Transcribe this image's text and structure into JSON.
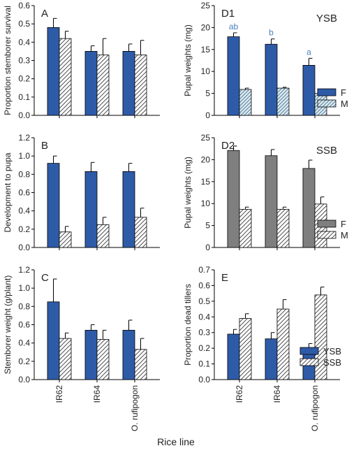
{
  "figure": {
    "xlabel": "Rice line"
  },
  "colors": {
    "blue": "#2e5ba8",
    "gray": "#7f7f7f",
    "hatch_bg": "#dde8ef",
    "sig_label": "#4a7fc1"
  },
  "legends": [
    {
      "panel": "D1",
      "items": [
        {
          "label": "F",
          "style": "blue"
        },
        {
          "label": "M",
          "style": "hatch-blue"
        }
      ]
    },
    {
      "panel": "D2",
      "items": [
        {
          "label": "F",
          "style": "gray"
        },
        {
          "label": "M",
          "style": "hatch-white"
        }
      ]
    },
    {
      "panel": "E",
      "items": [
        {
          "label": "YSB",
          "style": "blue"
        },
        {
          "label": "SSB",
          "style": "hatch-white"
        }
      ]
    }
  ],
  "chart_data": [
    {
      "id": "A",
      "type": "bar",
      "panel_label": "A",
      "subtitle": "",
      "ylabel": "Proportion stemborer survival",
      "ylim": [
        0,
        0.6
      ],
      "yticks": [
        0.0,
        0.1,
        0.2,
        0.3,
        0.4,
        0.5,
        0.6
      ],
      "ytick_decimals": 1,
      "categories": [
        "IR62",
        "IR64",
        "O. rufipogon"
      ],
      "series": [
        {
          "values": [
            0.48,
            0.35,
            0.35
          ],
          "errors": [
            0.05,
            0.03,
            0.04
          ],
          "style": "blue"
        },
        {
          "values": [
            0.42,
            0.33,
            0.33
          ],
          "errors": [
            0.04,
            0.09,
            0.08
          ],
          "style": "hatch-white"
        }
      ]
    },
    {
      "id": "D1",
      "type": "bar",
      "panel_label": "D1",
      "subtitle": "YSB",
      "ylabel": "Pupal weights (mg)",
      "ylim": [
        0,
        25
      ],
      "yticks": [
        0,
        5,
        10,
        15,
        20,
        25
      ],
      "ytick_decimals": 0,
      "categories": [
        "IR62",
        "IR64",
        "O. rufipogon"
      ],
      "series": [
        {
          "values": [
            17.9,
            16.2,
            11.4
          ],
          "errors": [
            0.9,
            1.2,
            1.6
          ],
          "style": "blue",
          "sig_labels": [
            "ab",
            "b",
            "a"
          ]
        },
        {
          "values": [
            5.9,
            6.2,
            5.0
          ],
          "errors": [
            0.3,
            0.2,
            0.5
          ],
          "style": "hatch-blue"
        }
      ]
    },
    {
      "id": "B",
      "type": "bar",
      "panel_label": "B",
      "subtitle": "",
      "ylabel": "Development to pupa",
      "ylim": [
        0,
        1.2
      ],
      "yticks": [
        0.0,
        0.2,
        0.4,
        0.6,
        0.8,
        1.0,
        1.2
      ],
      "ytick_decimals": 1,
      "categories": [
        "IR62",
        "IR64",
        "O. rufipogon"
      ],
      "series": [
        {
          "values": [
            0.92,
            0.83,
            0.83
          ],
          "errors": [
            0.08,
            0.1,
            0.09
          ],
          "style": "blue"
        },
        {
          "values": [
            0.17,
            0.25,
            0.33
          ],
          "errors": [
            0.06,
            0.08,
            0.1
          ],
          "style": "hatch-white"
        }
      ]
    },
    {
      "id": "D2",
      "type": "bar",
      "panel_label": "D2",
      "subtitle": "SSB",
      "ylabel": "Pupal weights (mg)",
      "ylim": [
        0,
        25
      ],
      "yticks": [
        0,
        5,
        10,
        15,
        20,
        25
      ],
      "ytick_decimals": 0,
      "categories": [
        "IR62",
        "IR64",
        "O. rufipogon"
      ],
      "series": [
        {
          "values": [
            22.1,
            20.9,
            18.0
          ],
          "errors": [
            1.0,
            1.4,
            1.9
          ],
          "style": "gray"
        },
        {
          "values": [
            8.7,
            8.7,
            9.9
          ],
          "errors": [
            0.5,
            0.5,
            1.6
          ],
          "style": "hatch-white"
        }
      ]
    },
    {
      "id": "C",
      "type": "bar",
      "panel_label": "C",
      "subtitle": "",
      "ylabel": "Stemborer weight (g/plant)",
      "ylim": [
        0,
        1.2
      ],
      "yticks": [
        0.0,
        0.2,
        0.4,
        0.6,
        0.8,
        1.0,
        1.2
      ],
      "ytick_decimals": 1,
      "categories": [
        "IR62",
        "IR64",
        "O. rufipogon"
      ],
      "series": [
        {
          "values": [
            0.85,
            0.54,
            0.54
          ],
          "errors": [
            0.25,
            0.06,
            0.11
          ],
          "style": "blue"
        },
        {
          "values": [
            0.45,
            0.44,
            0.33
          ],
          "errors": [
            0.06,
            0.1,
            0.12
          ],
          "style": "hatch-white"
        }
      ]
    },
    {
      "id": "E",
      "type": "bar",
      "panel_label": "E",
      "subtitle": "",
      "ylabel": "Proportion dead tillers",
      "ylim": [
        0,
        0.7
      ],
      "yticks": [
        0.0,
        0.1,
        0.2,
        0.3,
        0.4,
        0.5,
        0.6,
        0.7
      ],
      "ytick_decimals": 1,
      "categories": [
        "IR62",
        "IR64",
        "O. rufipogon"
      ],
      "series": [
        {
          "values": [
            0.29,
            0.26,
            0.17
          ],
          "errors": [
            0.03,
            0.04,
            0.06
          ],
          "style": "blue"
        },
        {
          "values": [
            0.39,
            0.45,
            0.54
          ],
          "errors": [
            0.03,
            0.06,
            0.05
          ],
          "style": "hatch-white"
        }
      ]
    }
  ]
}
